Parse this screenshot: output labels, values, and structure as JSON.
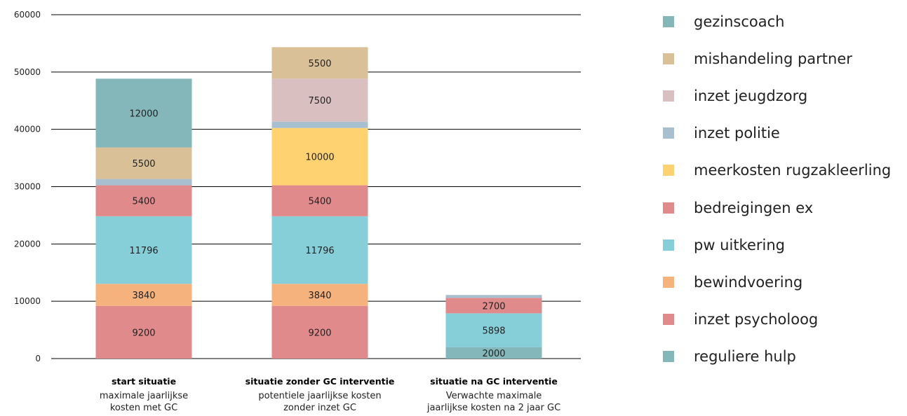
{
  "chart_data": {
    "type": "bar",
    "stacked": true,
    "title": "",
    "xlabel": "",
    "ylabel": "",
    "ylim": [
      0,
      60000
    ],
    "yticks": [
      0,
      10000,
      20000,
      30000,
      40000,
      50000,
      60000
    ],
    "grid": true,
    "legend_position": "right",
    "categories": [
      {
        "title": "start situatie",
        "lines": [
          "maximale jaarlijkse",
          "kosten met GC"
        ]
      },
      {
        "title": "situatie zonder GC interventie",
        "lines": [
          "potentiele jaarlijkse  kosten",
          "zonder inzet GC"
        ]
      },
      {
        "title": "situatie na GC interventie",
        "lines": [
          "Verwachte maximale",
          "jaarlijkse kosten na 2 jaar GC"
        ]
      }
    ],
    "series": [
      {
        "name": "reguliere hulp",
        "color": "#84b7b9",
        "values": [
          0,
          0,
          2000
        ],
        "labels": [
          "",
          "",
          "2000"
        ]
      },
      {
        "name": "inzet psycholoog",
        "color": "#e08a8c",
        "values": [
          9200,
          9200,
          0
        ],
        "labels": [
          "9200",
          "9200",
          ""
        ]
      },
      {
        "name": "bewindvoering",
        "color": "#f5b27d",
        "values": [
          3840,
          3840,
          0
        ],
        "labels": [
          "3840",
          "3840",
          ""
        ]
      },
      {
        "name": "pw uitkering",
        "color": "#86cfd9",
        "values": [
          11796,
          11796,
          5898
        ],
        "labels": [
          "11796",
          "11796",
          "5898"
        ]
      },
      {
        "name": "bedreigingen ex",
        "color": "#e08a8c",
        "values": [
          5400,
          5400,
          2700
        ],
        "labels": [
          "5400",
          "5400",
          "2700"
        ]
      },
      {
        "name": "meerkosten rugzakleerling",
        "color": "#ffd271",
        "values": [
          0,
          10000,
          0
        ],
        "labels": [
          "",
          "10000",
          ""
        ]
      },
      {
        "name": "inzet politie",
        "color": "#a8bfcf",
        "values": [
          1100,
          1100,
          500
        ],
        "labels": [
          "",
          "",
          ""
        ]
      },
      {
        "name": "inzet jeugdzorg",
        "color": "#d9bfbf",
        "values": [
          0,
          7500,
          0
        ],
        "labels": [
          "",
          "7500",
          ""
        ]
      },
      {
        "name": "mishandeling partner",
        "color": "#d9c097",
        "values": [
          5500,
          5500,
          0
        ],
        "labels": [
          "5500",
          "5500",
          ""
        ]
      },
      {
        "name": "gezinscoach",
        "color": "#84b7b9",
        "values": [
          12000,
          0,
          0
        ],
        "labels": [
          "12000",
          "",
          ""
        ]
      }
    ]
  }
}
